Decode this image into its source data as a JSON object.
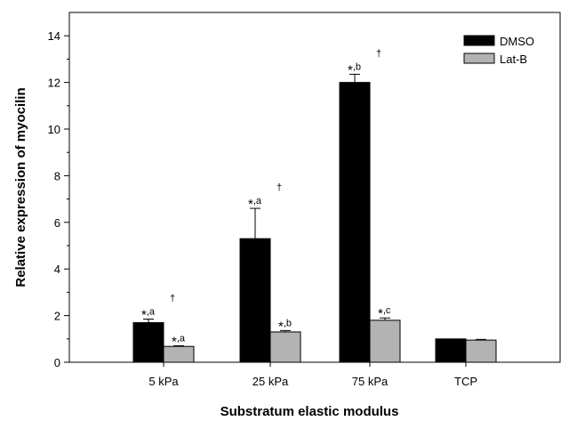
{
  "chart_data": {
    "type": "bar",
    "title": "",
    "xlabel": "Substratum elastic modulus",
    "ylabel": "Relative expression of myocilin",
    "categories": [
      "5 kPa",
      "25 kPa",
      "75 kPa",
      "TCP"
    ],
    "ylim": [
      0,
      15
    ],
    "yticks": [
      0,
      2,
      4,
      6,
      8,
      10,
      12,
      14
    ],
    "grid": false,
    "legend_position": "top-right",
    "series": [
      {
        "name": "DMSO",
        "color": "#000000",
        "values": [
          1.7,
          5.3,
          12.0,
          1.0
        ],
        "errors": [
          0.15,
          1.3,
          0.35,
          0.0
        ],
        "annotations": [
          {
            "star": "*",
            "sup": ",a",
            "dagger": "†"
          },
          {
            "star": "*",
            "sup": ",a",
            "dagger": "†"
          },
          {
            "star": "*",
            "sup": ",b",
            "dagger": "†"
          },
          null
        ]
      },
      {
        "name": "Lat-B",
        "color": "#b3b3b3",
        "values": [
          0.68,
          1.3,
          1.8,
          0.95
        ],
        "errors": [
          0.03,
          0.06,
          0.1,
          0.03
        ],
        "annotations": [
          {
            "star": "*",
            "sup": ",a"
          },
          {
            "star": "*",
            "sup": ",b"
          },
          {
            "star": "*",
            "sup": ",c"
          },
          null
        ]
      }
    ]
  }
}
